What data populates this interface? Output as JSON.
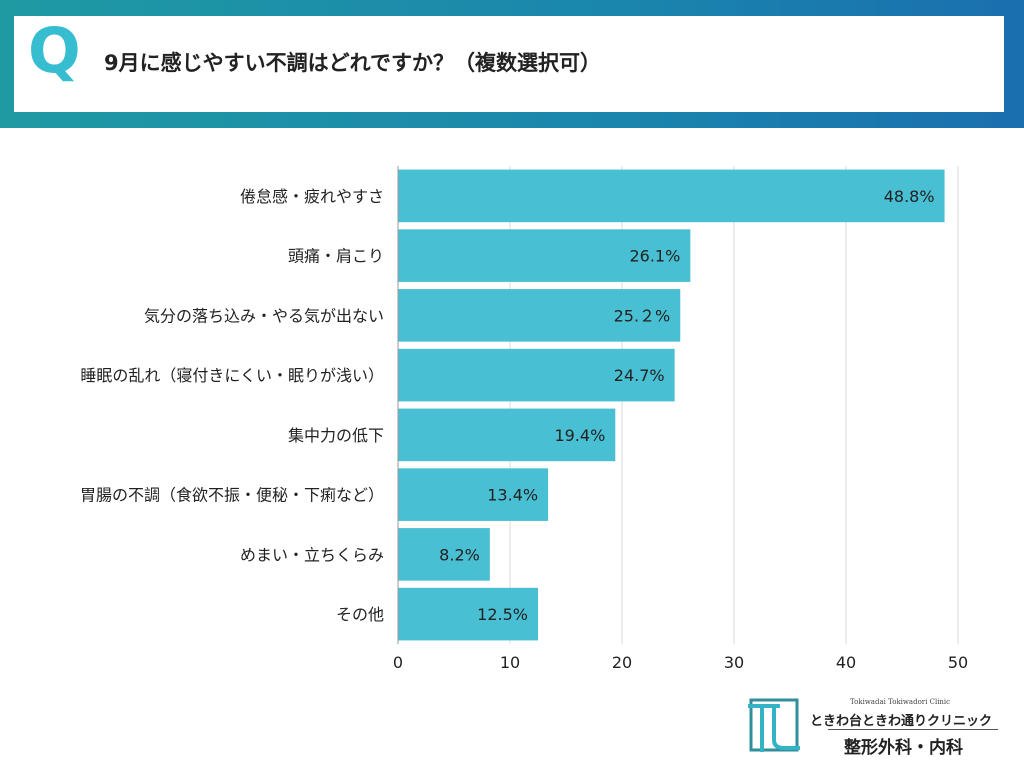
{
  "header": {
    "q_mark": "Q",
    "title": "9月に感じやすい不調はどれですか？（複数選択可）"
  },
  "chart_data": {
    "type": "bar",
    "orientation": "horizontal",
    "categories": [
      "倦怠感・疲れやすさ",
      "頭痛・肩こり",
      "気分の落ち込み・やる気が出ない",
      "睡眠の乱れ（寝付きにくい・眠りが浅い）",
      "集中力の低下",
      "胃腸の不調（食欲不振・便秘・下痢など）",
      "めまい・立ちくらみ",
      "その他"
    ],
    "values": [
      48.8,
      26.1,
      25.2,
      24.7,
      19.4,
      13.4,
      8.2,
      12.5
    ],
    "value_labels": [
      "48.8%",
      "26.1%",
      "25.２%",
      "24.7%",
      "19.4%",
      "13.4%",
      "8.2%",
      "12.5%"
    ],
    "xlim": [
      0,
      50
    ],
    "xticks": [
      0,
      10,
      20,
      30,
      40,
      50
    ],
    "xtick_labels": [
      "0",
      "10",
      "20",
      "30",
      "40",
      "50"
    ],
    "grid": true,
    "bar_color": "#48bfd3"
  },
  "logo": {
    "subtitle": "Tokiwadai Tokiwadori Clinic",
    "name": "ときわ台ときわ通りクリニック",
    "departments": "整形外科・内科"
  }
}
